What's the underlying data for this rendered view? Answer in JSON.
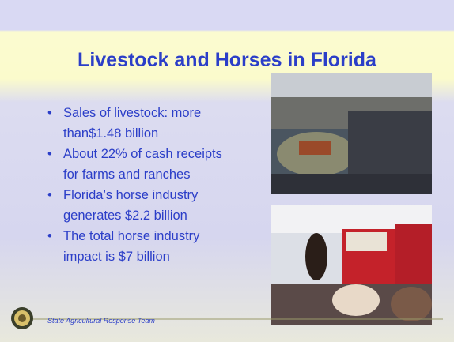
{
  "header": {
    "title": "Livestock and Horses in Florida"
  },
  "bullets": [
    [
      "Sales of livestock: more",
      "than$1.48 billion"
    ],
    [
      "About 22% of cash receipts",
      "for farms and ranches"
    ],
    [
      "Florida’s horse industry",
      "generates $2.2 billion"
    ],
    [
      "The total horse industry",
      "impact is $7 billion"
    ]
  ],
  "footer": {
    "text": "State Agricultural Response Team"
  }
}
